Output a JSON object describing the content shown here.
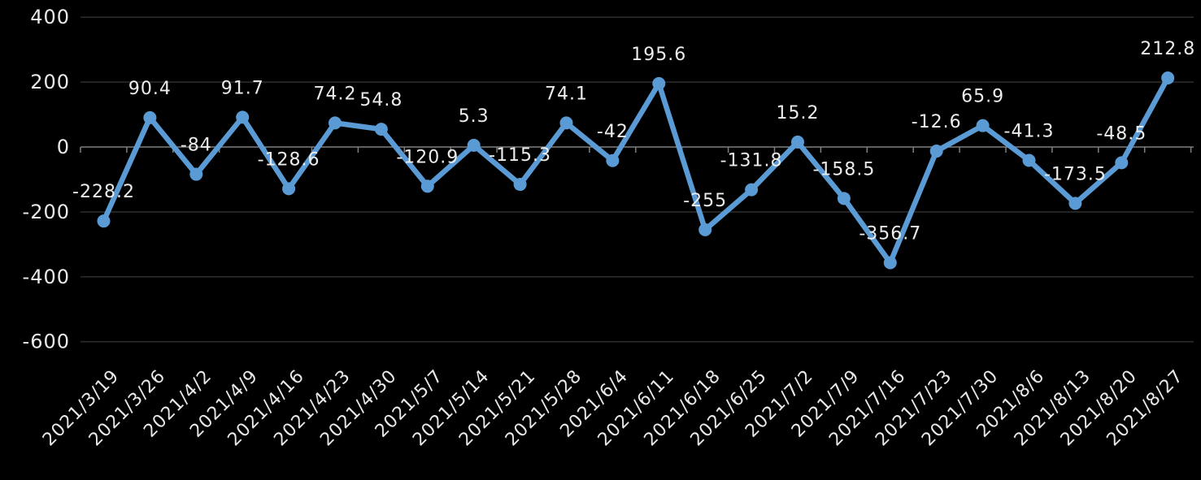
{
  "chart_data": {
    "type": "line",
    "title": "",
    "categories": [
      "2021/3/19",
      "2021/3/26",
      "2021/4/2",
      "2021/4/9",
      "2021/4/16",
      "2021/4/23",
      "2021/4/30",
      "2021/5/7",
      "2021/5/14",
      "2021/5/21",
      "2021/5/28",
      "2021/6/4",
      "2021/6/11",
      "2021/6/18",
      "2021/6/25",
      "2021/7/2",
      "2021/7/9",
      "2021/7/16",
      "2021/7/23",
      "2021/7/30",
      "2021/8/6",
      "2021/8/13",
      "2021/8/20",
      "2021/8/27"
    ],
    "values": [
      -228.2,
      90.4,
      -84,
      91.7,
      -128.6,
      74.2,
      54.8,
      -120.9,
      5.3,
      -115.3,
      74.1,
      -42,
      195.6,
      -255,
      -131.8,
      15.2,
      -158.5,
      -356.7,
      -12.6,
      65.9,
      -41.3,
      -173.5,
      -48.5,
      212.8
    ],
    "data_labels": [
      "-228.2",
      "90.4",
      "-84",
      "91.7",
      "-128.6",
      "74.2",
      "54.8",
      "-120.9",
      "5.3",
      "-115.3",
      "74.1",
      "-42",
      "195.6",
      "-255",
      "-131.8",
      "15.2",
      "-158.5",
      "-356.7",
      "-12.6",
      "65.9",
      "-41.3",
      "-173.5",
      "-48.5",
      "212.8"
    ],
    "y_ticks": [
      400,
      200,
      0,
      -200,
      -400,
      -600
    ],
    "ylim": [
      -650,
      430
    ],
    "xlabel": "",
    "ylabel": "",
    "grid": true,
    "legend_position": "none",
    "x_label_rotation_deg": -45,
    "colors": {
      "background": "#000000",
      "line": "#5b9bd5",
      "marker": "#5b9bd5",
      "data_label_text": "#ececec",
      "axis_tick_text": "#e8e8e8",
      "zero_axis_line": "#7f7f7f",
      "gridline": "#2b2b2b"
    }
  }
}
